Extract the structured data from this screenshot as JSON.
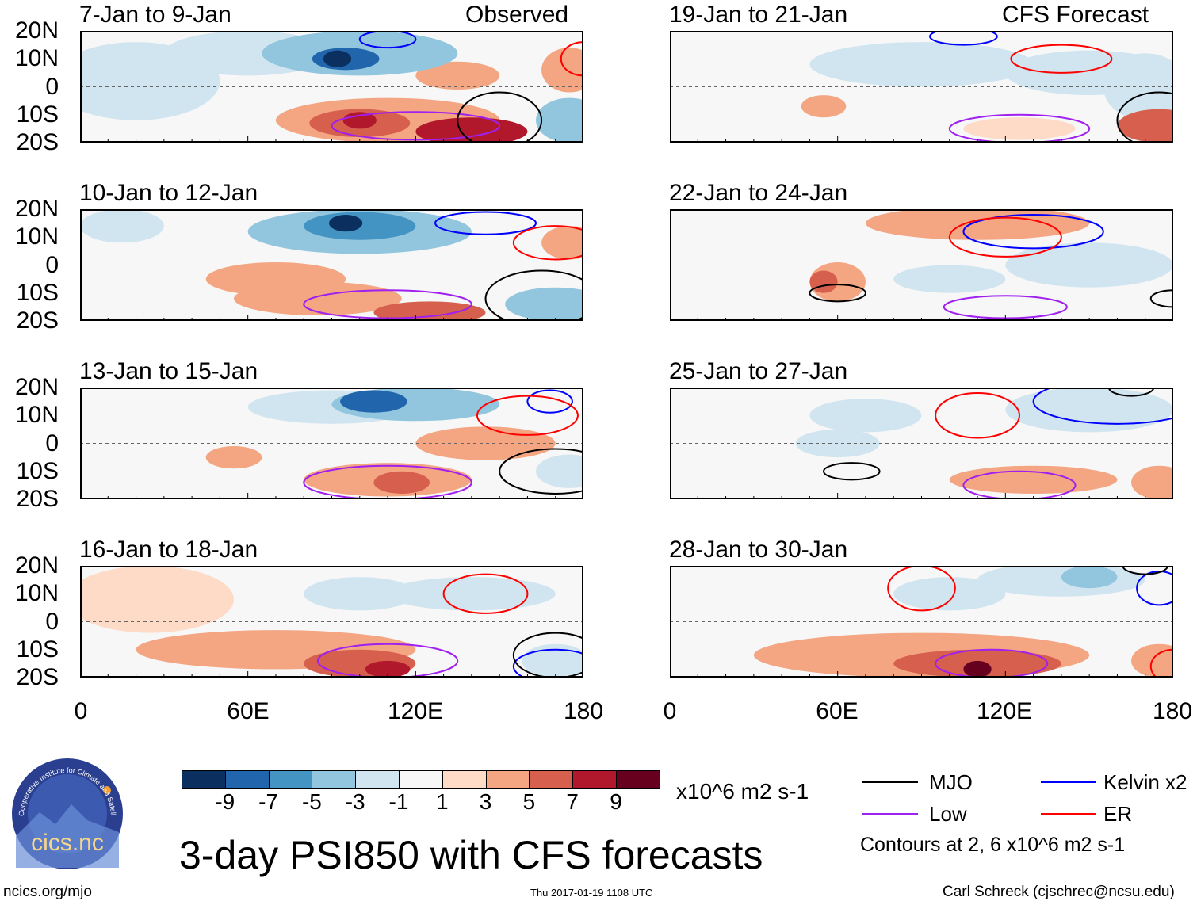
{
  "left_header": "Observed",
  "right_header": "CFS Forecast",
  "lat_labels": [
    "20N",
    "10N",
    "0",
    "10S",
    "20S"
  ],
  "lon_labels": [
    "0",
    "60E",
    "120E",
    "180"
  ],
  "colorbar": {
    "ticks": [
      "-9",
      "-7",
      "-5",
      "-3",
      "-1",
      "1",
      "3",
      "5",
      "7",
      "9"
    ],
    "colors": [
      "#0b2f5e",
      "#2166ac",
      "#4393c3",
      "#92c5de",
      "#d1e5f0",
      "#f7f7f7",
      "#fddbc7",
      "#f4a582",
      "#d6604d",
      "#b2182b",
      "#67001f"
    ],
    "units": "x10^6 m2 s-1"
  },
  "legend": {
    "items": [
      {
        "label": "MJO",
        "color": "#000000"
      },
      {
        "label": "Kelvin x2",
        "color": "#0000ff"
      },
      {
        "label": "Low",
        "color": "#a020f0"
      },
      {
        "label": "ER",
        "color": "#ff0000"
      }
    ],
    "note": "Contours at 2, 6 x10^6 m2 s-1"
  },
  "title": "3-day PSI850 with CFS forecasts",
  "footer": {
    "left": "ncics.org/mjo",
    "center": "Thu 2017-01-19 1108 UTC",
    "right": "Carl Schreck (cjschrec@ncsu.edu)"
  },
  "logo": {
    "arc": "Cooperative Institute for Climate and Satellites",
    "name": "cics.nc"
  },
  "chart_data": {
    "type": "heatmap",
    "variable": "PSI850 anomaly",
    "lon_range": [
      0,
      180
    ],
    "lat_range": [
      -20,
      20
    ],
    "panels": [
      {
        "title": "7-Jan to 9-Jan",
        "blobs": [
          [
            20,
            2,
            30,
            14,
            -1.5
          ],
          [
            60,
            12,
            30,
            8,
            -3
          ],
          [
            100,
            12,
            35,
            8,
            -5
          ],
          [
            95,
            10,
            12,
            4,
            -8
          ],
          [
            92,
            10,
            5,
            3,
            -10
          ],
          [
            175,
            -12,
            12,
            8,
            -5
          ],
          [
            175,
            6,
            10,
            8,
            4
          ],
          [
            110,
            -12,
            40,
            8,
            3
          ],
          [
            100,
            -13,
            18,
            5,
            6
          ],
          [
            100,
            -12,
            6,
            3,
            8
          ],
          [
            140,
            -16,
            20,
            5,
            7
          ],
          [
            135,
            4,
            15,
            5,
            3
          ]
        ],
        "contours": [
          [
            "kelvin",
            110,
            17,
            10,
            3
          ],
          [
            "er",
            180,
            10,
            8,
            6
          ],
          [
            "low",
            120,
            -14,
            30,
            5
          ],
          [
            "mjo",
            150,
            -12,
            15,
            10
          ]
        ]
      },
      {
        "title": "19-Jan to 21-Jan",
        "blobs": [
          [
            90,
            8,
            40,
            8,
            -2
          ],
          [
            150,
            5,
            30,
            8,
            -3
          ],
          [
            170,
            0,
            15,
            12,
            -3
          ],
          [
            55,
            -7,
            8,
            4,
            3
          ],
          [
            125,
            -15,
            20,
            4,
            2
          ],
          [
            175,
            -14,
            15,
            6,
            5
          ]
        ],
        "contours": [
          [
            "kelvin",
            105,
            18,
            12,
            3
          ],
          [
            "er",
            140,
            10,
            18,
            5
          ],
          [
            "low",
            125,
            -15,
            25,
            5
          ],
          [
            "mjo",
            175,
            -12,
            15,
            10
          ]
        ]
      },
      {
        "title": "10-Jan to 12-Jan",
        "blobs": [
          [
            15,
            14,
            15,
            6,
            -3
          ],
          [
            100,
            12,
            40,
            8,
            -5
          ],
          [
            100,
            14,
            20,
            5,
            -7
          ],
          [
            95,
            15,
            6,
            3,
            -10
          ],
          [
            170,
            -14,
            18,
            6,
            -5
          ],
          [
            175,
            8,
            10,
            6,
            3
          ],
          [
            70,
            -5,
            25,
            6,
            3
          ],
          [
            85,
            -12,
            30,
            6,
            4
          ],
          [
            125,
            -17,
            20,
            4,
            5
          ]
        ],
        "contours": [
          [
            "kelvin",
            145,
            15,
            18,
            4
          ],
          [
            "er",
            170,
            8,
            15,
            6
          ],
          [
            "low",
            110,
            -14,
            30,
            5
          ],
          [
            "mjo",
            165,
            -12,
            20,
            10
          ]
        ]
      },
      {
        "title": "22-Jan to 24-Jan",
        "blobs": [
          [
            60,
            -6,
            10,
            7,
            4
          ],
          [
            55,
            -6,
            5,
            4,
            6
          ],
          [
            110,
            15,
            40,
            6,
            3
          ],
          [
            150,
            0,
            30,
            8,
            -2
          ],
          [
            100,
            -5,
            20,
            5,
            -1.5
          ]
        ],
        "contours": [
          [
            "kelvin",
            130,
            12,
            25,
            6
          ],
          [
            "er",
            120,
            10,
            20,
            7
          ],
          [
            "low",
            120,
            -15,
            22,
            4
          ],
          [
            "mjo",
            60,
            -10,
            10,
            3
          ],
          [
            "mjo",
            180,
            -12,
            8,
            3
          ]
        ]
      },
      {
        "title": "13-Jan to 15-Jan",
        "blobs": [
          [
            90,
            13,
            30,
            6,
            -3
          ],
          [
            120,
            14,
            30,
            6,
            -5
          ],
          [
            105,
            15,
            12,
            4,
            -8
          ],
          [
            55,
            -5,
            10,
            4,
            3
          ],
          [
            110,
            -13,
            30,
            6,
            4
          ],
          [
            115,
            -14,
            10,
            4,
            6
          ],
          [
            145,
            0,
            25,
            6,
            3
          ],
          [
            175,
            -10,
            12,
            6,
            -3
          ]
        ],
        "contours": [
          [
            "kelvin",
            168,
            15,
            8,
            4
          ],
          [
            "er",
            160,
            10,
            18,
            7
          ],
          [
            "low",
            110,
            -14,
            30,
            6
          ],
          [
            "mjo",
            170,
            -10,
            20,
            8
          ]
        ]
      },
      {
        "title": "25-Jan to 27-Jan",
        "blobs": [
          [
            70,
            10,
            20,
            6,
            -2
          ],
          [
            150,
            12,
            30,
            8,
            -2
          ],
          [
            60,
            0,
            15,
            5,
            -1.5
          ],
          [
            130,
            -13,
            30,
            5,
            3
          ],
          [
            120,
            -14,
            12,
            3,
            4
          ],
          [
            175,
            -14,
            10,
            6,
            4
          ]
        ],
        "contours": [
          [
            "kelvin",
            160,
            15,
            30,
            8
          ],
          [
            "er",
            110,
            10,
            15,
            8
          ],
          [
            "low",
            125,
            -15,
            20,
            5
          ],
          [
            "mjo",
            65,
            -10,
            10,
            3
          ],
          [
            "mjo",
            165,
            20,
            8,
            3
          ]
        ]
      },
      {
        "title": "16-Jan to 18-Jan",
        "blobs": [
          [
            25,
            8,
            30,
            12,
            2
          ],
          [
            100,
            10,
            20,
            6,
            -3
          ],
          [
            140,
            10,
            30,
            6,
            -2
          ],
          [
            70,
            -10,
            50,
            7,
            3
          ],
          [
            100,
            -15,
            20,
            5,
            5
          ],
          [
            110,
            -17,
            8,
            3,
            7
          ],
          [
            170,
            -14,
            12,
            6,
            -2
          ]
        ],
        "contours": [
          [
            "kelvin",
            170,
            -16,
            15,
            6
          ],
          [
            "er",
            145,
            10,
            15,
            7
          ],
          [
            "low",
            110,
            -14,
            25,
            6
          ],
          [
            "mjo",
            170,
            -12,
            15,
            8
          ]
        ]
      },
      {
        "title": "28-Jan to 30-Jan",
        "blobs": [
          [
            140,
            15,
            30,
            6,
            -3
          ],
          [
            150,
            16,
            10,
            4,
            -5
          ],
          [
            100,
            10,
            20,
            6,
            -1.5
          ],
          [
            90,
            -12,
            60,
            8,
            3
          ],
          [
            110,
            -15,
            30,
            5,
            5
          ],
          [
            110,
            -17,
            5,
            3,
            9
          ],
          [
            175,
            -14,
            10,
            6,
            4
          ]
        ],
        "contours": [
          [
            "kelvin",
            175,
            12,
            8,
            6
          ],
          [
            "er",
            90,
            12,
            12,
            8
          ],
          [
            "low",
            115,
            -15,
            20,
            5
          ],
          [
            "mjo",
            170,
            20,
            8,
            3
          ],
          [
            "er",
            180,
            -16,
            8,
            6
          ]
        ]
      }
    ]
  }
}
